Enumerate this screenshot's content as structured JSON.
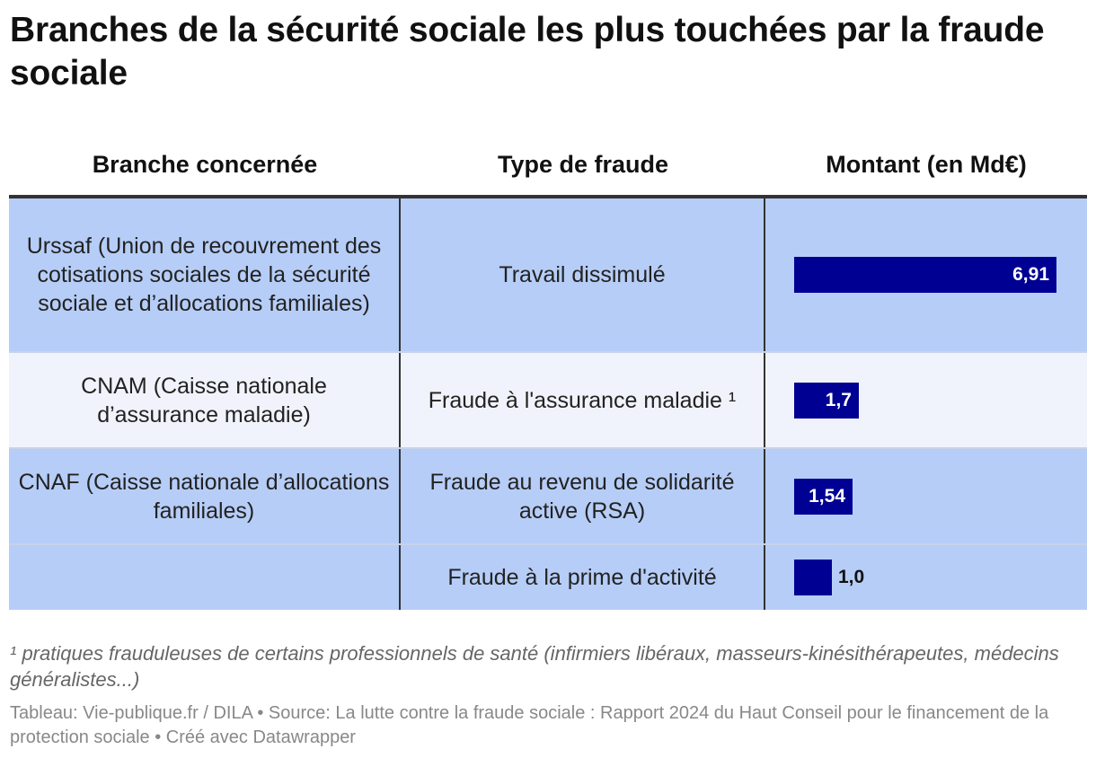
{
  "title": "Branches de la sécurité sociale les plus touchées par la fraude sociale",
  "columns": [
    "Branche concernée",
    "Type de fraude",
    "Montant (en Md€)"
  ],
  "chart_data": {
    "type": "table",
    "rows": [
      {
        "branche": "Urssaf (Union de recouvrement des cotisations sociales de la sécurité sociale et d’allocations familiales)",
        "type": "Travail dissimulé",
        "montant": 6.91,
        "label": "6,91"
      },
      {
        "branche": "CNAM (Caisse nationale d’assurance maladie)",
        "type": "Fraude à l'assurance maladie ¹",
        "montant": 1.7,
        "label": "1,7"
      },
      {
        "branche": "CNAF (Caisse nationale d’allocations familiales)",
        "type": "Fraude au revenu de solidarité active (RSA)",
        "montant": 1.54,
        "label": "1,54"
      },
      {
        "branche": "",
        "type": "Fraude à la prime d'activité",
        "montant": 1.0,
        "label": "1,0"
      }
    ],
    "max_value": 6.91
  },
  "colors": {
    "bar": "#000092",
    "row_blue": "#b6cdf7",
    "row_light": "#f0f3fb"
  },
  "footnote": "¹ pratiques frauduleuses de certains professionnels de santé (infirmiers libéraux, masseurs-kinésithérapeutes, médecins généralistes...)",
  "source": "Tableau: Vie-publique.fr / DILA • Source: La lutte contre la fraude sociale : Rapport 2024 du Haut Conseil pour le financement de la protection sociale • Créé avec Datawrapper"
}
